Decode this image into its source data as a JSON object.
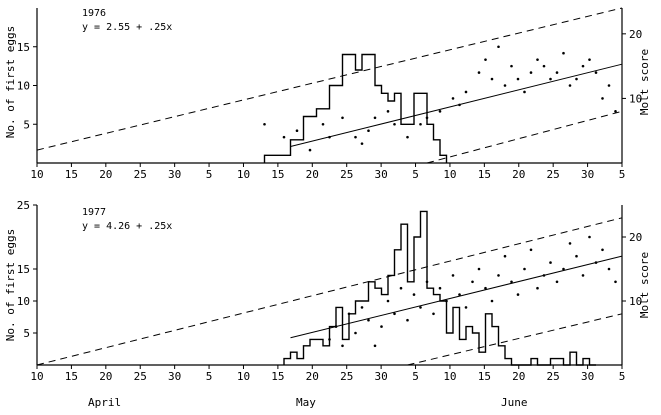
{
  "chart_data": [
    {
      "type": "line",
      "title": "",
      "annotation": [
        "1976",
        "y = 2.55 + .25x"
      ],
      "ylabel_left": "No. of first eggs",
      "ylabel_right": "Molt score",
      "left_yticks": [
        "5",
        "10",
        "15"
      ],
      "right_yticks": [
        "10",
        "20"
      ],
      "ylim_left": [
        0,
        20
      ],
      "ylim_right": [
        0,
        24
      ],
      "x_day_range": [
        0,
        90
      ],
      "x_tick_labels": [
        "10",
        "15",
        "20",
        "25",
        "30",
        "5",
        "10",
        "15",
        "20",
        "25",
        "30",
        "5",
        "10",
        "15",
        "20",
        "25",
        "30",
        "5"
      ],
      "series": [
        {
          "kind": "histogram",
          "axis": "left",
          "x_days": [
            35,
            36,
            37,
            38,
            39,
            40,
            41,
            42,
            43,
            44,
            45,
            46,
            47,
            48,
            49,
            50,
            51,
            52,
            53,
            54,
            55,
            56,
            57,
            58,
            59,
            60,
            61,
            62
          ],
          "values": [
            1,
            1,
            1,
            1,
            3,
            3,
            6,
            6,
            7,
            7,
            10,
            10,
            14,
            14,
            12,
            14,
            14,
            10,
            9,
            8,
            9,
            5,
            5,
            9,
            9,
            5,
            3,
            1
          ]
        },
        {
          "kind": "regression_line",
          "axis": "right",
          "intercept": 2.55,
          "slope": 0.25,
          "x_start_day": 39,
          "x_end_day": 90
        },
        {
          "kind": "envelope_upper",
          "axis": "right",
          "points": [
            [
              0,
              2
            ],
            [
              90,
              24
            ]
          ]
        },
        {
          "kind": "envelope_lower",
          "axis": "right",
          "points": [
            [
              60,
              0
            ],
            [
              90,
              8
            ]
          ]
        },
        {
          "kind": "scatter",
          "axis": "right",
          "points": [
            [
              35,
              6
            ],
            [
              38,
              4
            ],
            [
              40,
              5
            ],
            [
              42,
              2
            ],
            [
              44,
              6
            ],
            [
              45,
              4
            ],
            [
              47,
              7
            ],
            [
              49,
              4
            ],
            [
              50,
              3
            ],
            [
              51,
              5
            ],
            [
              52,
              7
            ],
            [
              54,
              8
            ],
            [
              55,
              6
            ],
            [
              57,
              4
            ],
            [
              59,
              6
            ],
            [
              60,
              7
            ],
            [
              62,
              8
            ],
            [
              64,
              10
            ],
            [
              65,
              9
            ],
            [
              66,
              11
            ],
            [
              68,
              14
            ],
            [
              69,
              16
            ],
            [
              70,
              13
            ],
            [
              71,
              18
            ],
            [
              72,
              12
            ],
            [
              73,
              15
            ],
            [
              74,
              13
            ],
            [
              75,
              11
            ],
            [
              76,
              14
            ],
            [
              77,
              16
            ],
            [
              78,
              15
            ],
            [
              79,
              13
            ],
            [
              80,
              14
            ],
            [
              81,
              17
            ],
            [
              82,
              12
            ],
            [
              83,
              13
            ],
            [
              84,
              15
            ],
            [
              85,
              16
            ],
            [
              86,
              14
            ],
            [
              87,
              10
            ],
            [
              88,
              12
            ],
            [
              89,
              8
            ]
          ]
        }
      ]
    },
    {
      "type": "line",
      "title": "",
      "annotation": [
        "1977",
        "y = 4.26 + .25x"
      ],
      "ylabel_left": "No. of first eggs",
      "ylabel_right": "Molt score",
      "left_yticks": [
        "5",
        "10",
        "15",
        "25"
      ],
      "right_yticks": [
        "10",
        "20"
      ],
      "ylim_left": [
        0,
        25
      ],
      "ylim_right": [
        0,
        25
      ],
      "x_day_range": [
        0,
        90
      ],
      "x_tick_labels": [
        "10",
        "15",
        "20",
        "25",
        "30",
        "5",
        "10",
        "15",
        "20",
        "25",
        "30",
        "5",
        "10",
        "15",
        "20",
        "25",
        "30",
        "5"
      ],
      "series": [
        {
          "kind": "histogram",
          "axis": "left",
          "x_days": [
            38,
            39,
            40,
            41,
            42,
            43,
            44,
            45,
            46,
            47,
            48,
            49,
            50,
            51,
            52,
            53,
            54,
            55,
            56,
            57,
            58,
            59,
            60,
            61,
            62,
            63,
            64,
            65,
            66,
            67,
            68,
            69,
            70,
            71,
            72,
            73,
            74,
            75,
            76,
            77,
            78,
            79,
            80,
            81,
            82,
            83,
            84,
            85
          ],
          "values": [
            1,
            2,
            1,
            3,
            4,
            4,
            3,
            6,
            9,
            4,
            8,
            10,
            10,
            13,
            12,
            11,
            14,
            18,
            22,
            13,
            20,
            24,
            12,
            11,
            10,
            5,
            9,
            4,
            6,
            5,
            2,
            8,
            6,
            3,
            1,
            0,
            0,
            0,
            1,
            0,
            0,
            1,
            1,
            0,
            2,
            0,
            1,
            0
          ]
        },
        {
          "kind": "regression_line",
          "axis": "right",
          "intercept": 4.26,
          "slope": 0.25,
          "x_start_day": 39,
          "x_end_day": 90
        },
        {
          "kind": "envelope_upper",
          "axis": "right",
          "points": [
            [
              0,
              0
            ],
            [
              90,
              23
            ]
          ]
        },
        {
          "kind": "envelope_lower",
          "axis": "right",
          "points": [
            [
              57,
              0
            ],
            [
              90,
              8
            ]
          ]
        },
        {
          "kind": "scatter",
          "axis": "right",
          "points": [
            [
              45,
              4
            ],
            [
              46,
              6
            ],
            [
              47,
              3
            ],
            [
              48,
              8
            ],
            [
              49,
              5
            ],
            [
              50,
              9
            ],
            [
              51,
              7
            ],
            [
              52,
              3
            ],
            [
              53,
              6
            ],
            [
              54,
              10
            ],
            [
              55,
              8
            ],
            [
              56,
              12
            ],
            [
              57,
              7
            ],
            [
              58,
              11
            ],
            [
              59,
              9
            ],
            [
              60,
              13
            ],
            [
              61,
              8
            ],
            [
              62,
              12
            ],
            [
              63,
              10
            ],
            [
              64,
              14
            ],
            [
              65,
              11
            ],
            [
              66,
              9
            ],
            [
              67,
              13
            ],
            [
              68,
              15
            ],
            [
              69,
              12
            ],
            [
              70,
              10
            ],
            [
              71,
              14
            ],
            [
              72,
              17
            ],
            [
              73,
              13
            ],
            [
              74,
              11
            ],
            [
              75,
              15
            ],
            [
              76,
              18
            ],
            [
              77,
              12
            ],
            [
              78,
              14
            ],
            [
              79,
              16
            ],
            [
              80,
              13
            ],
            [
              81,
              15
            ],
            [
              82,
              19
            ],
            [
              83,
              17
            ],
            [
              84,
              14
            ],
            [
              85,
              20
            ],
            [
              86,
              16
            ],
            [
              87,
              18
            ],
            [
              88,
              15
            ],
            [
              89,
              13
            ]
          ]
        }
      ]
    }
  ],
  "month_labels": [
    "April",
    "May",
    "June"
  ]
}
